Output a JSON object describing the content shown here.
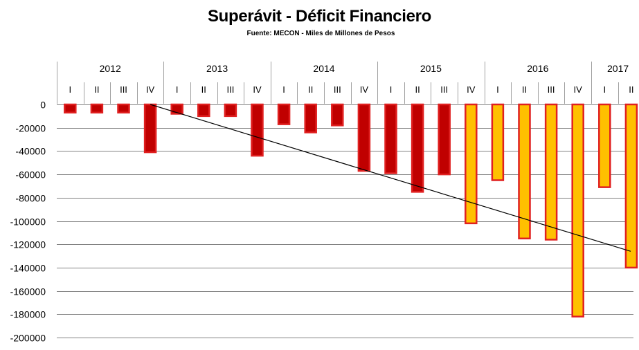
{
  "chart_data": {
    "type": "bar",
    "title": "Superávit - Déficit Financiero",
    "subtitle": "Fuente: MECON - Miles de Millones de Pesos",
    "years": [
      {
        "label": "2012",
        "quarters": 4
      },
      {
        "label": "2013",
        "quarters": 4
      },
      {
        "label": "2014",
        "quarters": 4
      },
      {
        "label": "2015",
        "quarters": 4
      },
      {
        "label": "2016",
        "quarters": 4
      },
      {
        "label": "2017",
        "quarters": 2
      }
    ],
    "categories": [
      "I",
      "II",
      "III",
      "IV",
      "I",
      "II",
      "III",
      "IV",
      "I",
      "II",
      "III",
      "IV",
      "I",
      "II",
      "III",
      "IV",
      "I",
      "II",
      "III",
      "IV",
      "I",
      "II"
    ],
    "values": [
      -7000,
      -7000,
      -7000,
      -41000,
      -8000,
      -10000,
      -10000,
      -44000,
      -17000,
      -24000,
      -18000,
      -57000,
      -59000,
      -75000,
      -60000,
      -102000,
      -65000,
      -115000,
      -116000,
      -182000,
      -71000,
      -140000
    ],
    "bar_colors": [
      "#c00000",
      "#c00000",
      "#c00000",
      "#c00000",
      "#c00000",
      "#c00000",
      "#c00000",
      "#c00000",
      "#c00000",
      "#c00000",
      "#c00000",
      "#c00000",
      "#c00000",
      "#c00000",
      "#c00000",
      "#ffc000",
      "#ffc000",
      "#ffc000",
      "#ffc000",
      "#ffc000",
      "#ffc000",
      "#ffc000"
    ],
    "trendline": {
      "from_category_index": 3,
      "from_value": 0,
      "to_value": -126000
    },
    "ylim": [
      -200000,
      0
    ],
    "yticks": [
      0,
      -20000,
      -40000,
      -60000,
      -80000,
      -100000,
      -120000,
      -140000,
      -160000,
      -180000,
      -200000
    ],
    "ytick_labels": [
      "0",
      "-20000",
      "-40000",
      "-60000",
      "-80000",
      "-100000",
      "-120000",
      "-140000",
      "-160000",
      "-180000",
      "-200000"
    ],
    "grid": true,
    "colors": {
      "red_bar": "#c00000",
      "yellow_bar": "#ffc000",
      "bar_outline": "#e02020",
      "trendline": "#000000",
      "grid": "#808080"
    }
  }
}
